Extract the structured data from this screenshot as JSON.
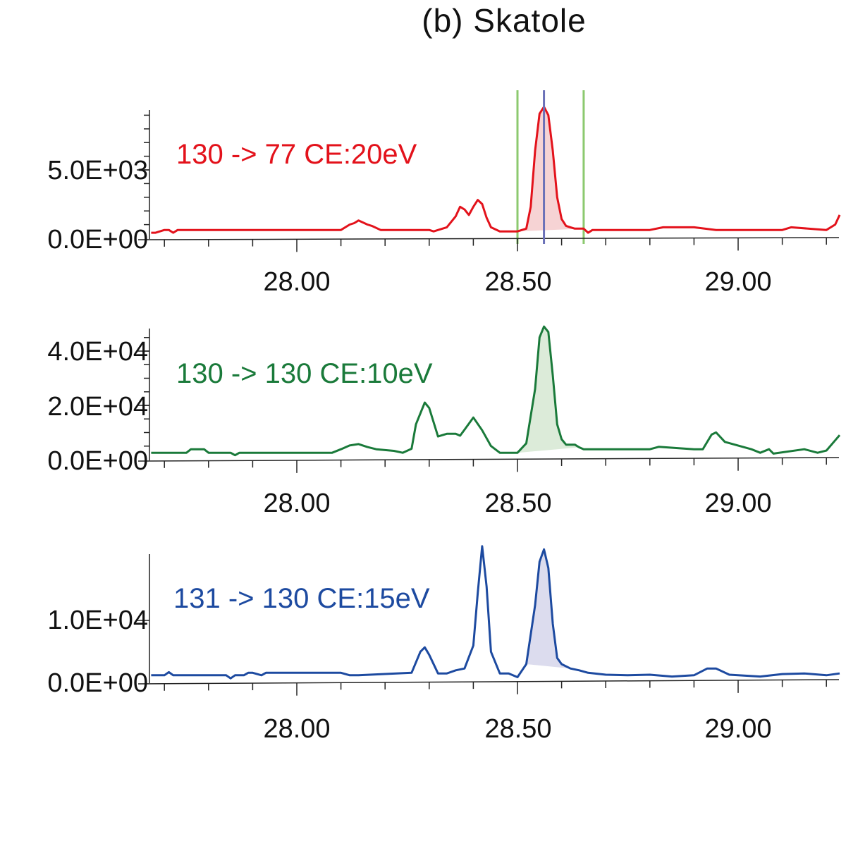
{
  "title": "(b) Skatole",
  "chart_data": [
    {
      "type": "line",
      "title": "130 -> 77 CE:20eV",
      "color": "#e3121b",
      "fill_color": "#f6d3d4",
      "xlabel": "",
      "ylabel": "",
      "xlim": [
        27.666,
        29.23
      ],
      "ylim": [
        0,
        9600
      ],
      "x_ticks": [
        "28.00",
        "28.50",
        "29.00"
      ],
      "y_ticks": [
        "0.0E+00",
        "5.0E+03"
      ],
      "integration_window": {
        "start": 28.5,
        "end": 28.65,
        "apex": 28.56,
        "window_color": "#8cc96f",
        "apex_color": "#6b71b8"
      },
      "x": [
        27.67,
        27.68,
        27.7,
        27.71,
        27.72,
        27.73,
        27.74,
        28.0,
        28.1,
        28.12,
        28.13,
        28.14,
        28.16,
        28.17,
        28.19,
        28.2,
        28.3,
        28.31,
        28.33,
        28.34,
        28.36,
        28.37,
        28.38,
        28.39,
        28.4,
        28.41,
        28.42,
        28.43,
        28.44,
        28.46,
        28.5,
        28.52,
        28.53,
        28.54,
        28.55,
        28.56,
        28.57,
        28.58,
        28.59,
        28.6,
        28.61,
        28.62,
        28.63,
        28.65,
        28.66,
        28.67,
        28.68,
        28.7,
        28.8,
        28.83,
        28.9,
        28.95,
        29.1,
        29.12,
        29.2,
        29.22,
        29.23
      ],
      "y": [
        200,
        200,
        400,
        400,
        200,
        400,
        400,
        400,
        400,
        800,
        900,
        1100,
        800,
        700,
        400,
        400,
        400,
        300,
        500,
        600,
        1400,
        2100,
        1900,
        1500,
        2100,
        2600,
        2300,
        1300,
        600,
        300,
        300,
        500,
        2100,
        6200,
        8900,
        9400,
        8800,
        6200,
        2800,
        1200,
        700,
        600,
        500,
        500,
        200,
        400,
        400,
        400,
        400,
        600,
        600,
        400,
        400,
        600,
        400,
        800,
        1500
      ]
    },
    {
      "type": "line",
      "title": "130 -> 130 CE:10eV",
      "color": "#1a7a3a",
      "fill_color": "#dcebd9",
      "xlabel": "",
      "ylabel": "",
      "xlim": [
        27.666,
        29.23
      ],
      "ylim": [
        0,
        48000
      ],
      "x_ticks": [
        "28.00",
        "28.50",
        "29.00"
      ],
      "y_ticks": [
        "0.0E+00",
        "2.0E+04",
        "4.0E+04"
      ],
      "x": [
        27.67,
        27.75,
        27.76,
        27.79,
        27.8,
        27.85,
        27.86,
        27.87,
        28.08,
        28.1,
        28.12,
        28.14,
        28.16,
        28.18,
        28.22,
        28.24,
        28.26,
        28.27,
        28.29,
        28.3,
        28.32,
        28.34,
        28.36,
        28.37,
        28.38,
        28.4,
        28.42,
        28.44,
        28.46,
        28.5,
        28.52,
        28.54,
        28.55,
        28.56,
        28.57,
        28.58,
        28.59,
        28.6,
        28.61,
        28.63,
        28.64,
        28.65,
        28.8,
        28.82,
        28.9,
        28.92,
        28.94,
        28.95,
        28.97,
        29.03,
        29.05,
        29.07,
        29.08,
        29.15,
        29.18,
        29.2,
        29.23
      ],
      "y": [
        1500,
        1500,
        2800,
        2800,
        1500,
        1500,
        600,
        1500,
        1500,
        2800,
        4200,
        4700,
        3600,
        2800,
        2200,
        1500,
        3000,
        12000,
        20000,
        18000,
        7500,
        8500,
        8500,
        7800,
        10000,
        14500,
        9800,
        4000,
        1500,
        1500,
        5000,
        25000,
        44000,
        48000,
        46000,
        30000,
        12000,
        6500,
        4500,
        4500,
        3500,
        2800,
        2800,
        3700,
        2800,
        2800,
        8200,
        9000,
        5500,
        2800,
        1500,
        2800,
        1200,
        2800,
        1500,
        2300,
        8000
      ]
    },
    {
      "type": "line",
      "title": "131 -> 130 CE:15eV",
      "color": "#1d4aa0",
      "fill_color": "#dcdcee",
      "xlabel": "",
      "ylabel": "",
      "xlim": [
        27.666,
        29.23
      ],
      "ylim": [
        0,
        21000
      ],
      "x_ticks": [
        "28.00",
        "28.50",
        "29.00"
      ],
      "y_ticks": [
        "0.0E+00",
        "1.0E+04"
      ],
      "x": [
        27.67,
        27.7,
        27.71,
        27.72,
        27.84,
        27.85,
        27.86,
        27.88,
        27.89,
        27.9,
        27.92,
        27.93,
        27.96,
        28.1,
        28.12,
        28.14,
        28.26,
        28.28,
        28.29,
        28.3,
        28.32,
        28.34,
        28.36,
        28.38,
        28.4,
        28.41,
        28.42,
        28.43,
        28.44,
        28.46,
        28.48,
        28.5,
        28.52,
        28.54,
        28.55,
        28.56,
        28.57,
        28.58,
        28.59,
        28.6,
        28.62,
        28.64,
        28.66,
        28.7,
        28.75,
        28.8,
        28.85,
        28.9,
        28.93,
        28.95,
        28.98,
        29.0,
        29.05,
        29.1,
        29.15,
        29.2,
        29.23
      ],
      "y": [
        700,
        700,
        1200,
        700,
        700,
        200,
        700,
        700,
        1100,
        1100,
        700,
        1100,
        1100,
        1100,
        700,
        700,
        1100,
        4500,
        5200,
        4000,
        1000,
        1000,
        1500,
        1800,
        5500,
        14000,
        21500,
        15000,
        4500,
        1000,
        1000,
        400,
        2500,
        12000,
        19000,
        21000,
        18000,
        9000,
        3500,
        2500,
        1800,
        1500,
        1100,
        800,
        700,
        800,
        500,
        700,
        1800,
        1800,
        800,
        700,
        500,
        900,
        1000,
        700,
        1000
      ]
    }
  ],
  "panels": [
    {
      "label": "130 -> 77 CE:20eV",
      "y_ticks": [
        "5.0E+03",
        "0.0E+00"
      ],
      "x_ticks": [
        "28.00",
        "28.50",
        "29.00"
      ]
    },
    {
      "label": "130 -> 130 CE:10eV",
      "y_ticks": [
        "4.0E+04",
        "2.0E+04",
        "0.0E+00"
      ],
      "x_ticks": [
        "28.00",
        "28.50",
        "29.00"
      ]
    },
    {
      "label": "131 -> 130 CE:15eV",
      "y_ticks": [
        "1.0E+04",
        "0.0E+00"
      ],
      "x_ticks": [
        "28.00",
        "28.50",
        "29.00"
      ]
    }
  ]
}
